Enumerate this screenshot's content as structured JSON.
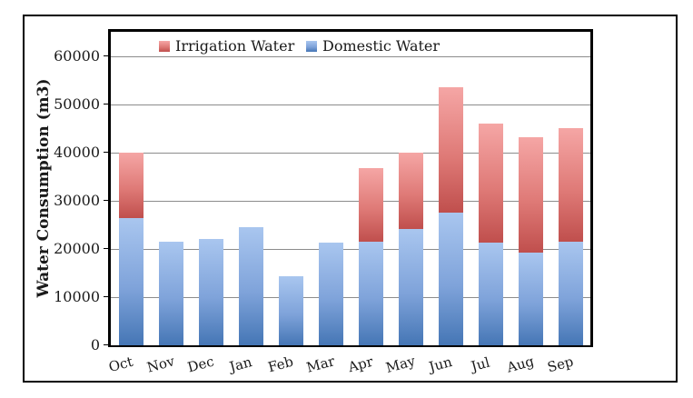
{
  "chart_data": {
    "type": "bar",
    "stacked": true,
    "title": "",
    "xlabel": "",
    "ylabel": "Water Consumption (m3)",
    "categories": [
      "Oct",
      "Nov",
      "Dec",
      "Jan",
      "Feb",
      "Mar",
      "Apr",
      "May",
      "Jun",
      "Jul",
      "Aug",
      "Sep"
    ],
    "series": [
      {
        "name": "Domestic Water",
        "values": [
          26300,
          21500,
          22000,
          24500,
          14400,
          21200,
          21400,
          24200,
          27500,
          21200,
          19300,
          21400
        ],
        "color_top": "#A9C6EF",
        "color_mid": "#7FA3DA",
        "color_bottom": "#4576B5"
      },
      {
        "name": "Irrigation Water",
        "values": [
          13700,
          0,
          0,
          0,
          0,
          0,
          15300,
          15800,
          26000,
          24800,
          23900,
          23600
        ],
        "color_top": "#F5A6A5",
        "color_mid": "#DF7A77",
        "color_bottom": "#C04F4D"
      }
    ],
    "ylim": [
      0,
      65000
    ],
    "yticks": [
      0,
      10000,
      20000,
      30000,
      40000,
      50000,
      60000
    ],
    "grid": true,
    "gridline_color": "#8C8C8C",
    "legend_position": "top-inside",
    "legend": [
      {
        "label": "Irrigation Water",
        "series_index": 1,
        "x": 175
      },
      {
        "label": "Domestic Water",
        "series_index": 0,
        "x": 337
      }
    ]
  }
}
